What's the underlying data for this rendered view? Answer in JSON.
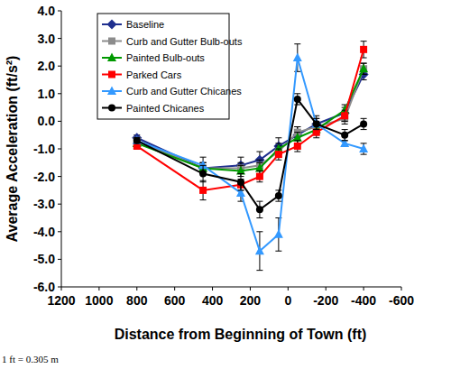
{
  "chart_data": {
    "type": "line",
    "x_label": "Distance from Beginning of Town (ft)",
    "y_label": "Average Acceleration (ft/s²)",
    "annotations": [
      "1 ft  = 0.305 m"
    ],
    "x": [
      800,
      450,
      250,
      150,
      50,
      -50,
      -150,
      -300,
      -400
    ],
    "xlim": [
      1200,
      -600
    ],
    "xticks": [
      1200,
      1000,
      800,
      600,
      400,
      200,
      0,
      -200,
      -400,
      -600
    ],
    "ylim": [
      -6,
      4
    ],
    "yticks": [
      {
        "value": -6,
        "label": "-6.0"
      },
      {
        "value": -5,
        "label": "-5.0"
      },
      {
        "value": -4,
        "label": "-4.0"
      },
      {
        "value": -3,
        "label": "-3.0"
      },
      {
        "value": -2,
        "label": "-2.0"
      },
      {
        "value": -1,
        "label": "-1.0"
      },
      {
        "value": 0,
        "label": "0.0"
      },
      {
        "value": 1,
        "label": "1.0"
      },
      {
        "value": 2,
        "label": "2.0"
      },
      {
        "value": 3,
        "label": "3.0"
      },
      {
        "value": 4,
        "label": "4.0"
      }
    ],
    "grid": false,
    "legend": "upper left",
    "series": [
      {
        "name": "Baseline",
        "color": "#1f2f8f",
        "marker": "diamond",
        "values": [
          -0.6,
          -1.7,
          -1.6,
          -1.4,
          -0.9,
          -0.5,
          -0.1,
          0.3,
          1.7
        ],
        "errors": [
          0.1,
          0.2,
          0.3,
          0.3,
          0.3,
          0.3,
          0.3,
          0.2,
          0.2
        ]
      },
      {
        "name": "Curb and Gutter Bulb-outs",
        "color": "#8c8c8c",
        "marker": "square",
        "values": [
          -0.7,
          -1.7,
          -1.7,
          -1.6,
          -1.1,
          -0.4,
          -0.2,
          0.1,
          1.9
        ],
        "errors": [
          0.1,
          0.2,
          0.2,
          0.2,
          0.2,
          0.2,
          0.2,
          0.2,
          0.2
        ]
      },
      {
        "name": "Painted Bulb-outs",
        "color": "#009900",
        "marker": "triangle",
        "values": [
          -0.8,
          -1.7,
          -1.8,
          -1.7,
          -1.0,
          -0.6,
          -0.3,
          0.4,
          1.9
        ],
        "errors": [
          0.1,
          0.2,
          0.2,
          0.2,
          0.2,
          0.2,
          0.2,
          0.2,
          0.2
        ]
      },
      {
        "name": "Parked Cars",
        "color": "#ff0000",
        "marker": "square",
        "values": [
          -0.9,
          -2.5,
          -2.3,
          -2.0,
          -1.2,
          -0.9,
          -0.4,
          0.2,
          2.6
        ],
        "errors": [
          0.1,
          0.35,
          0.2,
          0.2,
          0.2,
          0.2,
          0.2,
          0.2,
          0.3
        ]
      },
      {
        "name": "Curb and Gutter Chicanes",
        "color": "#3399ff",
        "marker": "triangle",
        "values": [
          -0.7,
          -1.6,
          -2.6,
          -4.7,
          -4.1,
          2.3,
          -0.1,
          -0.8,
          -1.0
        ],
        "errors": [
          0.1,
          0.3,
          0.3,
          0.7,
          0.6,
          0.5,
          0.2,
          0.1,
          0.2
        ]
      },
      {
        "name": "Painted Chicanes",
        "color": "#000000",
        "marker": "circle",
        "values": [
          -0.7,
          -1.9,
          -2.2,
          -3.2,
          -2.7,
          0.8,
          -0.1,
          -0.5,
          -0.1
        ],
        "errors": [
          0.1,
          0.3,
          0.3,
          0.3,
          0.2,
          0.2,
          0.2,
          0.2,
          0.2
        ]
      }
    ]
  }
}
